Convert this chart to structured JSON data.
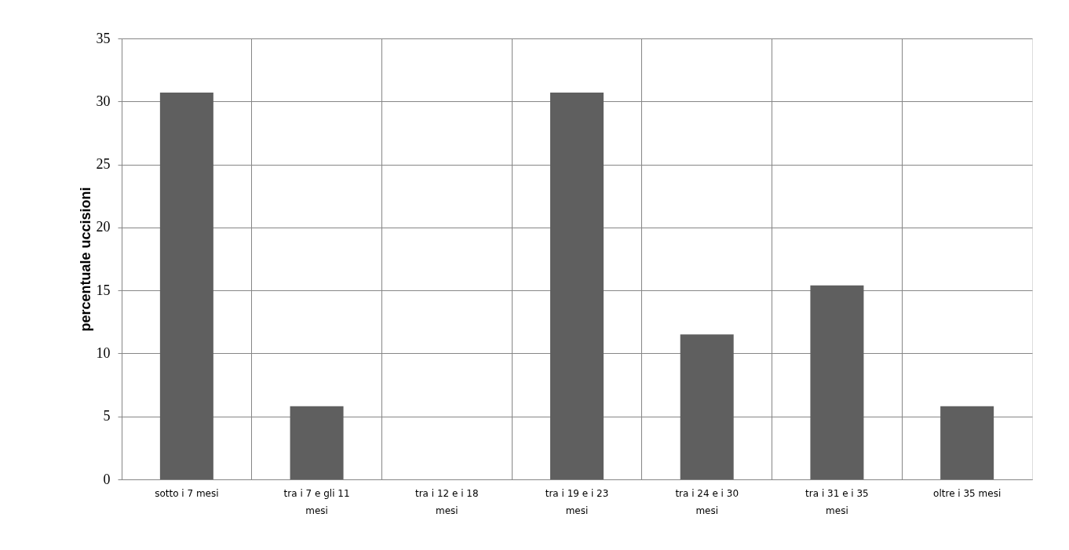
{
  "chart_data": {
    "type": "bar",
    "ylabel": "percentuale uccisioni",
    "categories": [
      "sotto i 7 mesi",
      "tra i 7 e gli 11\nmesi",
      "tra i 12 e i 18\nmesi",
      "tra i 19 e i 23\nmesi",
      "tra i 24 e i 30\nmesi",
      "tra i 31 e i 35\nmesi",
      "oltre i 35 mesi"
    ],
    "values": [
      30.7,
      5.8,
      0,
      30.7,
      11.5,
      15.4,
      5.8
    ],
    "color": "#5f5f5f",
    "ylim": [
      0,
      35
    ],
    "yticks": [
      0,
      5,
      10,
      15,
      20,
      25,
      30,
      35
    ],
    "grid": true
  }
}
